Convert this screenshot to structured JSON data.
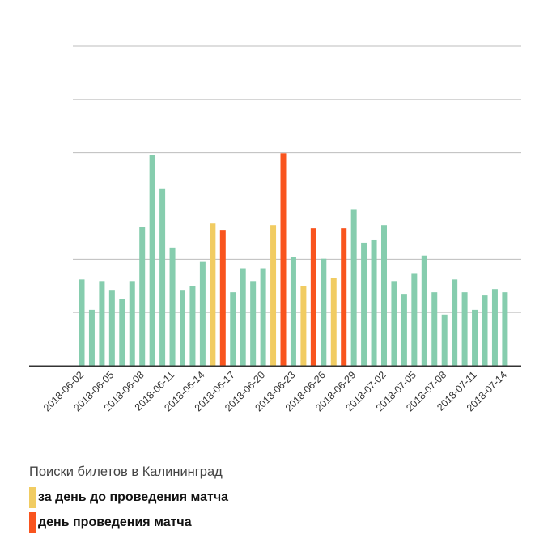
{
  "chart_data": {
    "type": "bar",
    "title": "",
    "xlabel": "",
    "ylabel": "",
    "ylim": [
      0,
      100
    ],
    "grid": true,
    "colors": {
      "default": "#86cdae",
      "day_before": "#f1cc62",
      "match_day": "#f9541e",
      "grid": "#bdbdbd",
      "axis": "#333333"
    },
    "categories": [
      "2018-06-02",
      "2018-06-03",
      "2018-06-04",
      "2018-06-05",
      "2018-06-06",
      "2018-06-07",
      "2018-06-08",
      "2018-06-09",
      "2018-06-10",
      "2018-06-11",
      "2018-06-12",
      "2018-06-13",
      "2018-06-14",
      "2018-06-15",
      "2018-06-16",
      "2018-06-17",
      "2018-06-18",
      "2018-06-19",
      "2018-06-20",
      "2018-06-21",
      "2018-06-22",
      "2018-06-23",
      "2018-06-24",
      "2018-06-25",
      "2018-06-26",
      "2018-06-27",
      "2018-06-28",
      "2018-06-29",
      "2018-06-30",
      "2018-07-01",
      "2018-07-02",
      "2018-07-03",
      "2018-07-04",
      "2018-07-05",
      "2018-07-06",
      "2018-07-07",
      "2018-07-08",
      "2018-07-09",
      "2018-07-10",
      "2018-07-11",
      "2018-07-12",
      "2018-07-13",
      "2018-07-14"
    ],
    "tick_labels": [
      "2018-06-02",
      "2018-06-05",
      "2018-06-08",
      "2018-06-11",
      "2018-06-14",
      "2018-06-17",
      "2018-06-20",
      "2018-06-23",
      "2018-06-26",
      "2018-06-29",
      "2018-07-02",
      "2018-07-05",
      "2018-07-08",
      "2018-07-11",
      "2018-07-14"
    ],
    "values": [
      27,
      17.5,
      26.5,
      23.5,
      21,
      26.5,
      43.5,
      66,
      55.5,
      37,
      23.5,
      25,
      32.5,
      44.5,
      42.5,
      23,
      30.5,
      26.5,
      30.5,
      44,
      66.5,
      34,
      25,
      43,
      33.5,
      27.5,
      43,
      49,
      38.5,
      39.5,
      44,
      26.5,
      22.5,
      29,
      34.5,
      23,
      16,
      27,
      23,
      17.5,
      22,
      24,
      23
    ],
    "highlight": [
      "default",
      "default",
      "default",
      "default",
      "default",
      "default",
      "default",
      "default",
      "default",
      "default",
      "default",
      "default",
      "default",
      "day_before",
      "match_day",
      "default",
      "default",
      "default",
      "default",
      "day_before",
      "match_day",
      "default",
      "day_before",
      "match_day",
      "default",
      "day_before",
      "match_day",
      "default",
      "default",
      "default",
      "default",
      "default",
      "default",
      "default",
      "default",
      "default",
      "default",
      "default",
      "default",
      "default",
      "default",
      "default",
      "default"
    ]
  },
  "legend": {
    "title": "Поиски билетов в Калининград",
    "items": [
      {
        "label": "за день до проведения матча",
        "color": "#f1cc62"
      },
      {
        "label": "день проведения матча",
        "color": "#f9541e"
      }
    ]
  }
}
